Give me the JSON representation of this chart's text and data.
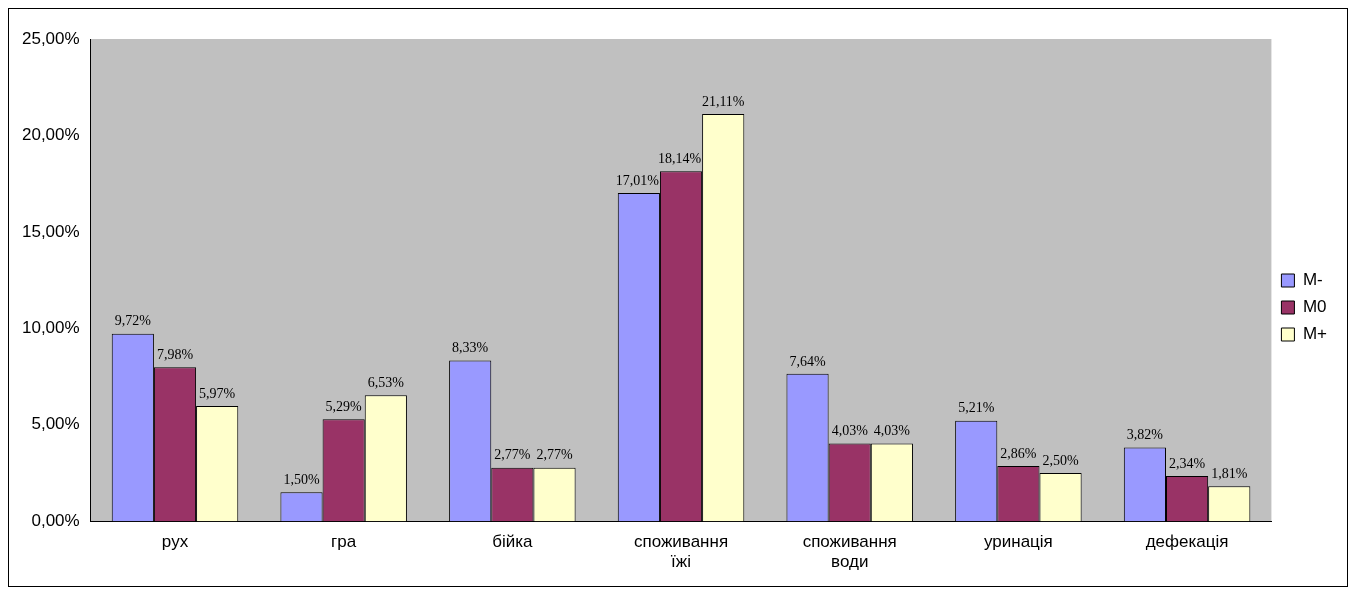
{
  "chart_data": {
    "type": "bar",
    "categories": [
      "рух",
      "гра",
      "бійка",
      "споживання їжі",
      "споживання води",
      "уринація",
      "дефекація"
    ],
    "series": [
      {
        "name": "M-",
        "color": "#9999ff",
        "values": [
          9.72,
          1.5,
          8.33,
          17.01,
          7.64,
          5.21,
          3.82
        ],
        "value_labels": [
          "9,72%",
          "1,50%",
          "8,33%",
          "17,01%",
          "7,64%",
          "5,21%",
          "3,82%"
        ]
      },
      {
        "name": "M0",
        "color": "#993366",
        "values": [
          7.98,
          5.29,
          2.77,
          18.14,
          4.03,
          2.86,
          2.34
        ],
        "value_labels": [
          "7,98%",
          "5,29%",
          "2,77%",
          "18,14%",
          "4,03%",
          "2,86%",
          "2,34%"
        ]
      },
      {
        "name": "M+",
        "color": "#ffffcc",
        "values": [
          5.97,
          6.53,
          2.77,
          21.11,
          4.03,
          2.5,
          1.81
        ],
        "value_labels": [
          "5,97%",
          "6,53%",
          "2,77%",
          "21,11%",
          "4,03%",
          "2,50%",
          "1,81%"
        ]
      }
    ],
    "ylim": [
      0,
      25
    ],
    "yticks": [
      {
        "value": 0,
        "label": "0,00%"
      },
      {
        "value": 5,
        "label": "5,00%"
      },
      {
        "value": 10,
        "label": "10,00%"
      },
      {
        "value": 15,
        "label": "15,00%"
      },
      {
        "value": 20,
        "label": "20,00%"
      },
      {
        "value": 25,
        "label": "25,00%"
      }
    ],
    "grid": false,
    "legend": "right"
  }
}
